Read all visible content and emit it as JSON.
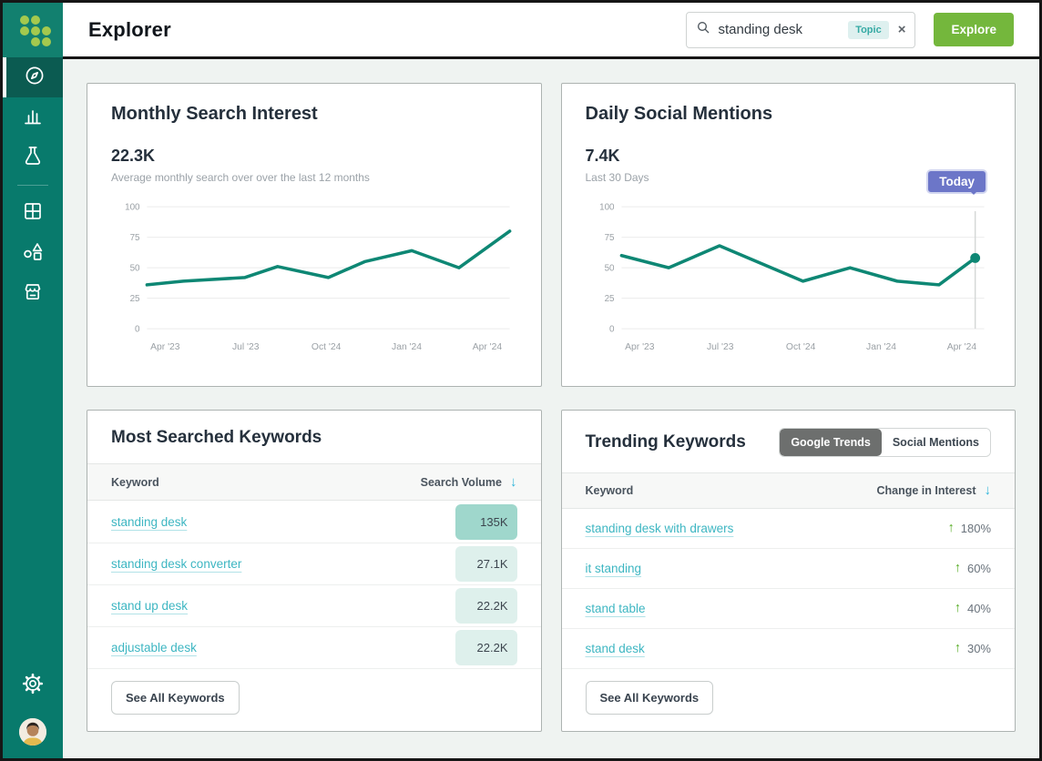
{
  "header": {
    "title": "Explorer",
    "search": {
      "value": "standing desk",
      "badge": "Topic",
      "clear_icon": "×",
      "search_icon": "magnifier"
    },
    "explore_label": "Explore"
  },
  "sidebar": {
    "icons": [
      "compass-icon",
      "bar-chart-icon",
      "flask-icon",
      "grid-icon",
      "shapes-icon",
      "store-icon",
      "gear-icon",
      "user-avatar"
    ],
    "active_item": "compass"
  },
  "colors": {
    "sidebar_teal": "#087A6C",
    "logo_teal": "#12806F",
    "logo_dot_green": "#A4C94E",
    "active_nav": "#0B5B51",
    "explore_green": "#74B73C",
    "topic_badge_bg": "#DEF0EF",
    "topic_badge_text": "#35AAA4",
    "chart_line": "#0E8774",
    "tooltip_purple": "#6C76C8",
    "link_teal": "#3DB6C2",
    "sort_arrow_cyan": "#2EB4DA",
    "pill_highlight": "#9FD7CC",
    "pill_light": "#DEF0EC",
    "up_arrow_green": "#58AD26"
  },
  "cards": {
    "search_interest": {
      "title": "Monthly Search Interest",
      "value": "22.3K",
      "subtitle": "Average monthly search over over the last 12 months"
    },
    "social_mentions": {
      "title": "Daily Social Mentions",
      "value": "7.4K",
      "subtitle": "Last 30 Days",
      "tooltip": "Today"
    },
    "most_searched": {
      "title": "Most Searched Keywords",
      "columns": [
        "Keyword",
        "Search Volume"
      ],
      "sort_icon": "↓",
      "rows": [
        {
          "keyword": "standing desk",
          "volume": "135K",
          "highlight": true
        },
        {
          "keyword": "standing desk converter",
          "volume": "27.1K",
          "highlight": false
        },
        {
          "keyword": "stand up desk",
          "volume": "22.2K",
          "highlight": false
        },
        {
          "keyword": "adjustable desk",
          "volume": "22.2K",
          "highlight": false
        }
      ],
      "footer_button": "See All Keywords"
    },
    "trending": {
      "title": "Trending Keywords",
      "toggle": [
        {
          "label": "Google Trends",
          "active": true
        },
        {
          "label": "Social Mentions",
          "active": false
        }
      ],
      "columns": [
        "Keyword",
        "Change in Interest"
      ],
      "sort_icon": "↓",
      "up_icon": "↑",
      "rows": [
        {
          "keyword": "standing desk with drawers",
          "change": "180%"
        },
        {
          "keyword": "it standing",
          "change": "60%"
        },
        {
          "keyword": "stand table",
          "change": "40%"
        },
        {
          "keyword": "stand desk",
          "change": "30%"
        }
      ],
      "footer_button": "See All Keywords"
    }
  },
  "chart_data": [
    {
      "type": "line",
      "title": "Monthly Search Interest",
      "ylabel": "",
      "xlabel": "",
      "ylim": [
        0,
        100
      ],
      "grid": true,
      "y_ticks": [
        100,
        75,
        50,
        25,
        0
      ],
      "x_ticks": [
        "Apr '23",
        "Jul '23",
        "Oct '24",
        "Jan '24",
        "Apr '24"
      ],
      "line_color": "#0E8774",
      "points": [
        {
          "x": 0.0,
          "y": 36
        },
        {
          "x": 0.1,
          "y": 39
        },
        {
          "x": 0.27,
          "y": 42
        },
        {
          "x": 0.36,
          "y": 51
        },
        {
          "x": 0.5,
          "y": 42
        },
        {
          "x": 0.6,
          "y": 55
        },
        {
          "x": 0.73,
          "y": 64
        },
        {
          "x": 0.86,
          "y": 50
        },
        {
          "x": 1.0,
          "y": 80
        }
      ]
    },
    {
      "type": "line",
      "title": "Daily Social Mentions",
      "ylabel": "",
      "xlabel": "",
      "ylim": [
        0,
        100
      ],
      "grid": true,
      "y_ticks": [
        100,
        75,
        50,
        25,
        0
      ],
      "x_ticks": [
        "Apr '23",
        "Jul '23",
        "Oct '24",
        "Jan '24",
        "Apr '24"
      ],
      "line_color": "#0E8774",
      "cursor_x": 0.975,
      "marker_end": true,
      "tooltip": "Today",
      "points": [
        {
          "x": 0.0,
          "y": 60
        },
        {
          "x": 0.13,
          "y": 50
        },
        {
          "x": 0.27,
          "y": 68
        },
        {
          "x": 0.5,
          "y": 39
        },
        {
          "x": 0.63,
          "y": 50
        },
        {
          "x": 0.76,
          "y": 39
        },
        {
          "x": 0.875,
          "y": 36
        },
        {
          "x": 0.975,
          "y": 58
        }
      ]
    }
  ]
}
